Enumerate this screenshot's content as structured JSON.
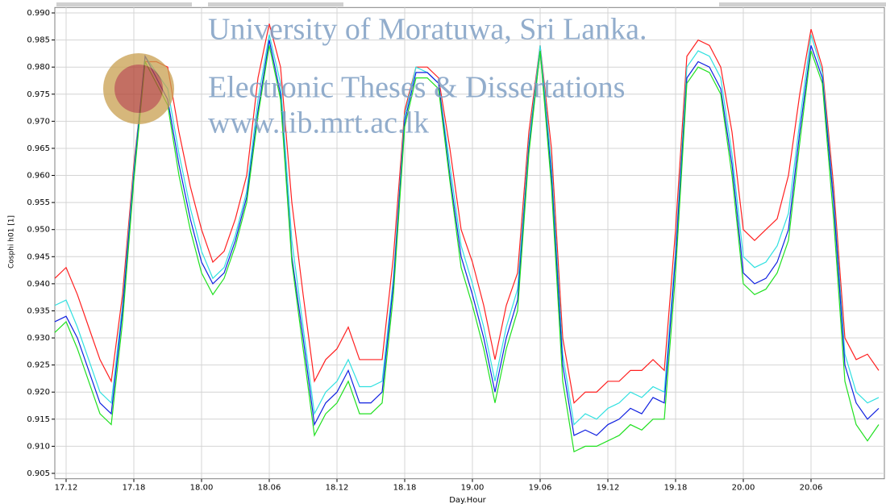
{
  "chart_data": {
    "type": "line",
    "xlabel": "Day.Hour",
    "ylabel": "Cosphi h01 [1]",
    "watermark": [
      "University of Moratuwa, Sri Lanka.",
      "Electronic Theses & Dissertations",
      "www.lib.mrt.ac.lk"
    ],
    "grid": true,
    "ylim": [
      0.904,
      0.991
    ],
    "yticks": [
      0.905,
      {
        "value": 0.91,
        "label": "0.910"
      },
      0.915,
      {
        "value": 0.92,
        "label": "0.920"
      },
      0.925,
      {
        "value": 0.93,
        "label": "0.930"
      },
      0.935,
      {
        "value": 0.94,
        "label": "0.940"
      },
      0.945,
      {
        "value": 0.95,
        "label": "0.950"
      },
      0.955,
      {
        "value": 0.96,
        "label": "0.960"
      },
      0.965,
      {
        "value": 0.97,
        "label": "0.970"
      },
      0.975,
      {
        "value": 0.98,
        "label": "0.980"
      },
      0.985,
      {
        "value": 0.99,
        "label": "0.990"
      }
    ],
    "categories": [
      null,
      "17.12",
      null,
      null,
      null,
      null,
      null,
      "17.18",
      null,
      null,
      null,
      null,
      null,
      "18.00",
      null,
      null,
      null,
      null,
      null,
      "18.06",
      null,
      null,
      null,
      null,
      null,
      "18.12",
      null,
      null,
      null,
      null,
      null,
      "18.18",
      null,
      null,
      null,
      null,
      null,
      "19.00",
      null,
      null,
      null,
      null,
      null,
      "19.06",
      null,
      null,
      null,
      null,
      null,
      "19.12",
      null,
      null,
      null,
      null,
      null,
      "19.18",
      null,
      null,
      null,
      null,
      null,
      "20.00",
      null,
      null,
      null,
      null,
      null,
      "20.06",
      null,
      null,
      null,
      null,
      null,
      null
    ],
    "series": [
      {
        "color": "#ff2020",
        "values": [
          0.941,
          0.943,
          0.938,
          0.932,
          0.926,
          0.922,
          0.938,
          0.962,
          0.981,
          0.981,
          0.98,
          0.968,
          0.958,
          0.95,
          0.944,
          0.946,
          0.952,
          0.96,
          0.978,
          0.988,
          0.98,
          0.955,
          0.938,
          0.922,
          0.926,
          0.928,
          0.932,
          0.926,
          0.926,
          0.926,
          0.945,
          0.972,
          0.98,
          0.98,
          0.978,
          0.965,
          0.95,
          0.944,
          0.936,
          0.926,
          0.936,
          0.942,
          0.968,
          0.984,
          0.965,
          0.93,
          0.918,
          0.92,
          0.92,
          0.922,
          0.922,
          0.924,
          0.924,
          0.926,
          0.924,
          0.95,
          0.982,
          0.985,
          0.984,
          0.98,
          0.968,
          0.95,
          0.948,
          0.95,
          0.952,
          0.96,
          0.975,
          0.987,
          0.98,
          0.958,
          0.93,
          0.926,
          0.927,
          0.924
        ]
      },
      {
        "color": "#30e0e0",
        "values": [
          0.936,
          0.937,
          0.932,
          0.926,
          0.92,
          0.918,
          0.936,
          0.961,
          0.982,
          0.979,
          0.976,
          0.964,
          0.954,
          0.946,
          0.941,
          0.943,
          0.949,
          0.957,
          0.974,
          0.986,
          0.977,
          0.948,
          0.932,
          0.916,
          0.92,
          0.922,
          0.926,
          0.921,
          0.921,
          0.922,
          0.941,
          0.971,
          0.98,
          0.979,
          0.977,
          0.962,
          0.947,
          0.94,
          0.932,
          0.922,
          0.932,
          0.939,
          0.966,
          0.984,
          0.962,
          0.927,
          0.914,
          0.916,
          0.915,
          0.917,
          0.918,
          0.92,
          0.919,
          0.921,
          0.92,
          0.946,
          0.98,
          0.983,
          0.982,
          0.978,
          0.964,
          0.945,
          0.943,
          0.944,
          0.947,
          0.953,
          0.97,
          0.986,
          0.979,
          0.956,
          0.927,
          0.92,
          0.918,
          0.919
        ]
      },
      {
        "color": "#1020e0",
        "values": [
          0.933,
          0.934,
          0.93,
          0.924,
          0.918,
          0.916,
          0.935,
          0.96,
          0.982,
          0.978,
          0.974,
          0.962,
          0.952,
          0.944,
          0.94,
          0.942,
          0.948,
          0.956,
          0.972,
          0.985,
          0.975,
          0.945,
          0.93,
          0.914,
          0.918,
          0.92,
          0.924,
          0.918,
          0.918,
          0.92,
          0.94,
          0.97,
          0.979,
          0.979,
          0.977,
          0.96,
          0.945,
          0.938,
          0.93,
          0.92,
          0.93,
          0.937,
          0.965,
          0.983,
          0.96,
          0.925,
          0.912,
          0.913,
          0.912,
          0.914,
          0.915,
          0.917,
          0.916,
          0.919,
          0.918,
          0.945,
          0.978,
          0.981,
          0.98,
          0.976,
          0.962,
          0.942,
          0.94,
          0.941,
          0.944,
          0.95,
          0.968,
          0.984,
          0.978,
          0.955,
          0.925,
          0.918,
          0.915,
          0.917
        ]
      },
      {
        "color": "#20e020",
        "values": [
          0.931,
          0.933,
          0.928,
          0.922,
          0.916,
          0.914,
          0.933,
          0.959,
          0.981,
          0.977,
          0.973,
          0.96,
          0.95,
          0.942,
          0.938,
          0.941,
          0.947,
          0.955,
          0.971,
          0.984,
          0.974,
          0.944,
          0.928,
          0.912,
          0.916,
          0.918,
          0.922,
          0.916,
          0.916,
          0.918,
          0.938,
          0.969,
          0.978,
          0.978,
          0.976,
          0.959,
          0.943,
          0.936,
          0.928,
          0.918,
          0.928,
          0.935,
          0.964,
          0.983,
          0.958,
          0.922,
          0.909,
          0.91,
          0.91,
          0.911,
          0.912,
          0.914,
          0.913,
          0.915,
          0.915,
          0.942,
          0.977,
          0.98,
          0.979,
          0.975,
          0.96,
          0.94,
          0.938,
          0.939,
          0.942,
          0.948,
          0.966,
          0.983,
          0.977,
          0.952,
          0.922,
          0.914,
          0.911,
          0.914
        ]
      }
    ]
  }
}
